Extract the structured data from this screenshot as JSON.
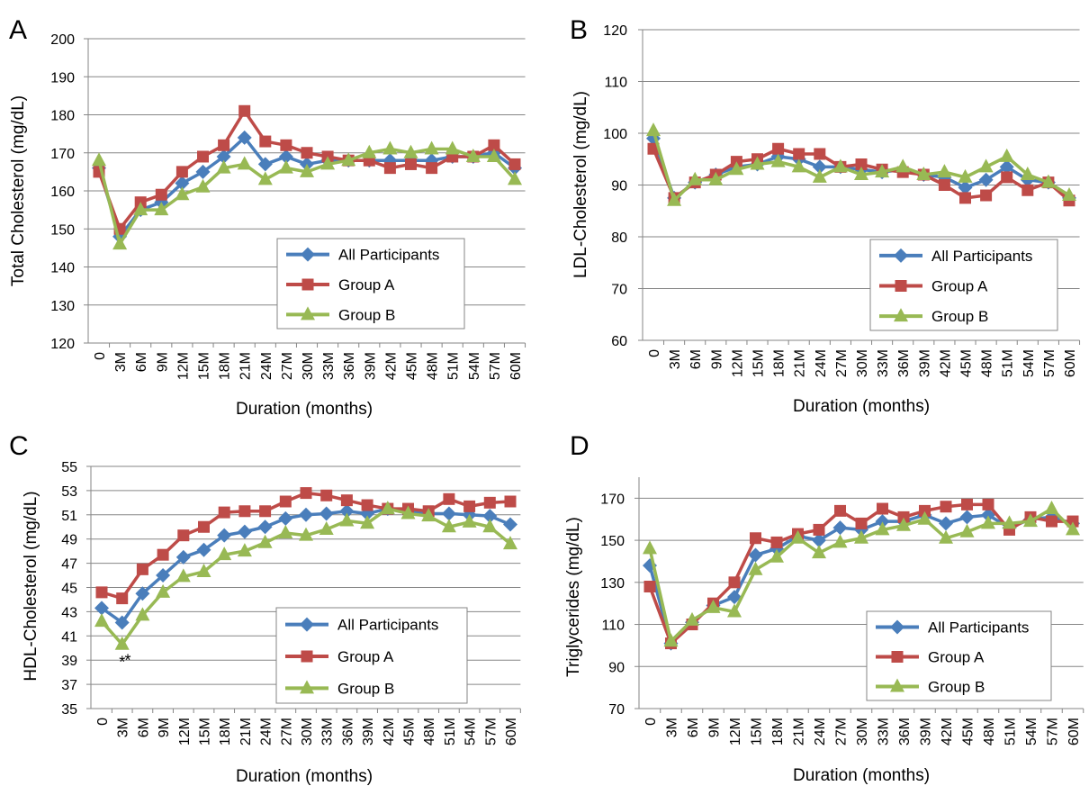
{
  "colors": {
    "all_participants": "#4A7EBB",
    "group_a": "#BE4B48",
    "group_b": "#98B954",
    "axis": "#868686",
    "grid": "#868686"
  },
  "x_categories": [
    "0",
    "3M",
    "6M",
    "9M",
    "12M",
    "15M",
    "18M",
    "21M",
    "24M",
    "27M",
    "30M",
    "33M",
    "36M",
    "39M",
    "42M",
    "45M",
    "48M",
    "51M",
    "54M",
    "57M",
    "60M"
  ],
  "chart_data": [
    {
      "panel": "A",
      "type": "line",
      "xlabel": "Duration (months)",
      "ylabel": "Total Cholesterol (mg/dL)",
      "ylim": [
        120,
        200
      ],
      "yticks": [
        120,
        130,
        140,
        150,
        160,
        170,
        180,
        190,
        200
      ],
      "grid": true,
      "legend_position": "bottom-right",
      "series": [
        {
          "name": "All Participants",
          "marker": "diamond",
          "values": [
            166,
            148,
            155,
            157,
            162,
            165,
            169,
            174,
            167,
            169,
            167,
            168,
            168,
            168,
            168,
            168,
            168,
            169,
            169,
            170,
            166
          ]
        },
        {
          "name": "Group A",
          "marker": "square",
          "values": [
            165,
            150,
            157,
            159,
            165,
            169,
            172,
            181,
            173,
            172,
            170,
            169,
            168,
            168,
            166,
            167,
            166,
            169,
            169,
            172,
            167
          ]
        },
        {
          "name": "Group B",
          "marker": "triangle",
          "values": [
            168,
            146,
            155,
            155,
            159,
            161,
            166,
            167,
            163,
            166,
            165,
            167,
            168,
            170,
            171,
            170,
            171,
            171,
            169,
            169,
            163
          ]
        }
      ],
      "annotations": []
    },
    {
      "panel": "B",
      "type": "line",
      "xlabel": "Duration (months)",
      "ylabel": "LDL-Cholesterol (mg/dL)",
      "ylim": [
        60,
        120
      ],
      "yticks": [
        60,
        70,
        80,
        90,
        100,
        110,
        120
      ],
      "grid": true,
      "legend_position": "bottom-right",
      "series": [
        {
          "name": "All Participants",
          "marker": "diamond",
          "values": [
            99,
            87.5,
            90.5,
            92,
            93.5,
            94,
            95.5,
            95,
            93.5,
            93.5,
            93,
            92.5,
            93,
            92,
            91.5,
            89.5,
            91,
            93.5,
            91,
            90.5,
            87.5
          ]
        },
        {
          "name": "Group A",
          "marker": "square",
          "values": [
            97,
            87.5,
            90.5,
            92,
            94.5,
            95,
            97,
            96,
            96,
            93.5,
            94,
            93,
            92.5,
            92,
            90,
            87.5,
            88,
            91.5,
            89,
            90.5,
            87
          ]
        },
        {
          "name": "Group B",
          "marker": "triangle",
          "values": [
            100.5,
            87,
            91,
            91,
            93,
            94,
            94.5,
            93.5,
            91.5,
            93.5,
            92,
            92.5,
            93.5,
            92,
            92.5,
            91.5,
            93.5,
            95.5,
            92,
            90.5,
            88
          ]
        }
      ],
      "annotations": []
    },
    {
      "panel": "C",
      "type": "line",
      "xlabel": "Duration (months)",
      "ylabel": "HDL-Cholesterol (mg/dL)",
      "ylim": [
        35,
        55
      ],
      "yticks": [
        35,
        37,
        39,
        41,
        43,
        45,
        47,
        49,
        51,
        53,
        55
      ],
      "grid": true,
      "legend_position": "bottom-right",
      "series": [
        {
          "name": "All Participants",
          "marker": "diamond",
          "values": [
            43.3,
            42.1,
            44.5,
            46,
            47.5,
            48.1,
            49.3,
            49.6,
            50,
            50.7,
            51,
            51.1,
            51.3,
            51.1,
            51.5,
            51.3,
            51.1,
            51.1,
            51,
            50.9,
            50.2
          ]
        },
        {
          "name": "Group A",
          "marker": "square",
          "values": [
            44.6,
            44.1,
            46.5,
            47.7,
            49.3,
            50,
            51.2,
            51.3,
            51.3,
            52.1,
            52.8,
            52.6,
            52.2,
            51.8,
            51.5,
            51.5,
            51.3,
            52.3,
            51.7,
            52,
            52.1
          ]
        },
        {
          "name": "Group B",
          "marker": "triangle",
          "values": [
            42.2,
            40.3,
            42.7,
            44.6,
            45.9,
            46.3,
            47.7,
            48,
            48.7,
            49.5,
            49.3,
            49.8,
            50.5,
            50.3,
            51.5,
            51.1,
            50.9,
            50,
            50.4,
            50,
            48.6
          ]
        }
      ],
      "annotations": [
        {
          "text": "*",
          "category": "3M",
          "position": "below"
        },
        {
          "text": "*",
          "category": "6M",
          "position": "below"
        }
      ]
    },
    {
      "panel": "D",
      "type": "line",
      "xlabel": "Duration (months)",
      "ylabel": "Triglycerides (mg/dL)",
      "ylim": [
        70,
        180
      ],
      "yticks": [
        70,
        90,
        110,
        130,
        150,
        170
      ],
      "grid": true,
      "legend_position": "bottom-right",
      "series": [
        {
          "name": "All Participants",
          "marker": "diamond",
          "values": [
            138,
            101,
            111,
            119,
            123,
            143,
            146,
            152,
            150,
            156,
            155,
            159,
            159,
            162,
            158,
            161,
            162,
            156,
            160,
            161,
            158
          ]
        },
        {
          "name": "Group A",
          "marker": "square",
          "values": [
            128,
            101,
            110,
            120,
            130,
            151,
            149,
            153,
            155,
            164,
            158,
            165,
            161,
            164,
            166,
            167,
            167,
            155,
            161,
            159,
            159
          ]
        },
        {
          "name": "Group B",
          "marker": "triangle",
          "values": [
            146,
            102,
            112,
            118,
            116,
            136,
            142,
            151,
            144,
            149,
            151,
            155,
            157,
            160,
            151,
            154,
            158,
            158,
            159,
            165,
            155
          ]
        }
      ],
      "annotations": []
    }
  ]
}
